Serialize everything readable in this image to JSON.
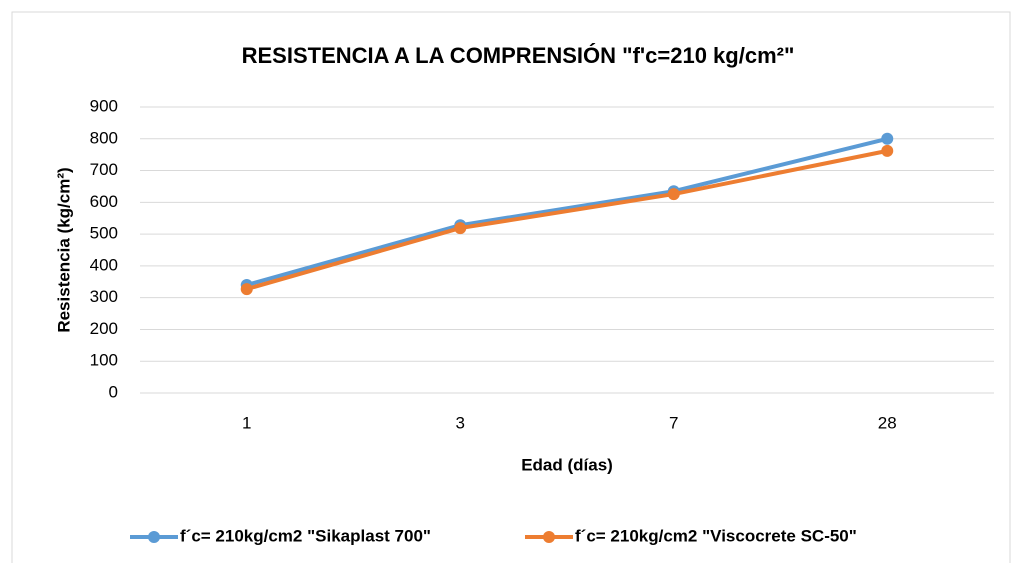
{
  "chart_data": {
    "type": "line",
    "title": "RESISTENCIA A LA COMPRENSIÓN \"f'c=210 kg/cm²\"",
    "x_label": "Edad (días)",
    "y_label": "Resistencia (kg/cm²)",
    "categories": [
      "1",
      "3",
      "7",
      "28"
    ],
    "series": [
      {
        "name": "f´c= 210kg/cm2 \"Sikaplast 700\"",
        "color": "#5b9bd5",
        "values": [
          340,
          528,
          635,
          800
        ]
      },
      {
        "name": "f´c= 210kg/cm2 \"Viscocrete SC-50\"",
        "color": "#ed7d31",
        "values": [
          327,
          519,
          626,
          762
        ]
      }
    ],
    "ylim": [
      0,
      900
    ],
    "yticks": [
      0,
      100,
      200,
      300,
      400,
      500,
      600,
      700,
      800,
      900
    ],
    "grid": true,
    "legend": "bottom"
  }
}
